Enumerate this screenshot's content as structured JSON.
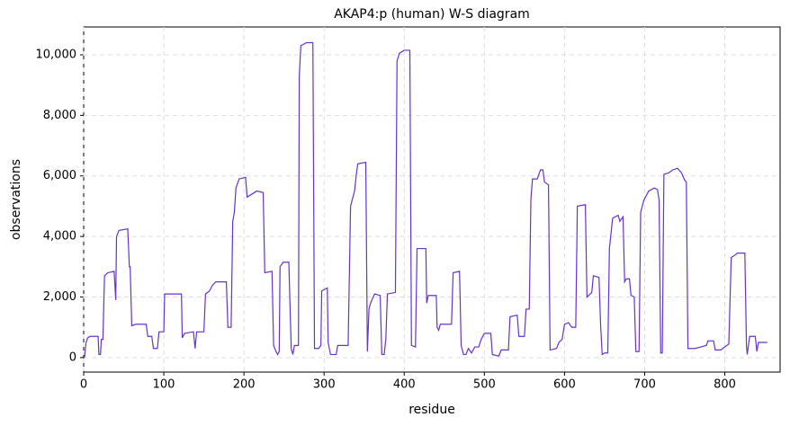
{
  "chart_data": {
    "type": "line",
    "title": "AKAP4:p (human) W-S diagram",
    "x_label": "residue",
    "y_label": "observations",
    "xlim": [
      0,
      869
    ],
    "ylim": [
      -480,
      10920
    ],
    "xticks": [
      0,
      100,
      200,
      300,
      400,
      500,
      600,
      700,
      800
    ],
    "yticks": [
      0,
      {
        "value": 2000,
        "label": "2,000"
      },
      {
        "value": 4000,
        "label": "4,000"
      },
      {
        "value": 6000,
        "label": "6,000"
      },
      {
        "value": 8000,
        "label": "8,000"
      },
      {
        "value": 10000,
        "label": "10,000"
      }
    ],
    "grid": true,
    "series": [
      {
        "color": "#6633cc",
        "x": [
          1,
          3,
          5,
          8,
          18,
          19,
          21,
          22,
          24,
          26,
          30,
          38,
          40,
          41,
          44,
          55,
          57,
          58,
          60,
          65,
          78,
          80,
          85,
          87,
          92,
          94,
          100,
          101,
          122,
          123,
          126,
          137,
          139,
          141,
          150,
          152,
          157,
          161,
          165,
          178,
          180,
          184,
          186,
          188,
          190,
          194,
          202,
          204,
          210,
          216,
          224,
          226,
          235,
          237,
          240,
          242,
          244,
          245,
          249,
          256,
          258,
          259,
          261,
          263,
          268,
          269,
          271,
          278,
          286,
          288,
          293,
          296,
          297,
          304,
          305,
          308,
          315,
          317,
          330,
          333,
          338,
          340,
          342,
          352,
          354,
          356,
          358,
          363,
          370,
          372,
          375,
          377,
          379,
          389,
          391,
          394,
          400,
          407,
          409,
          414,
          416,
          427,
          428,
          430,
          440,
          441,
          443,
          445,
          459,
          461,
          469,
          471,
          474,
          477,
          480,
          484,
          488,
          493,
          496,
          500,
          508,
          510,
          518,
          521,
          530,
          532,
          541,
          543,
          550,
          552,
          556,
          558,
          560,
          566,
          570,
          573,
          575,
          580,
          582,
          590,
          593,
          597,
          600,
          605,
          609,
          614,
          616,
          626,
          628,
          634,
          636,
          643,
          645,
          647,
          650,
          654,
          656,
          660,
          667,
          669,
          673,
          675,
          677,
          681,
          683,
          687,
          689,
          693,
          695,
          699,
          705,
          712,
          716,
          718,
          720,
          722,
          724,
          730,
          735,
          741,
          746,
          750,
          752,
          754,
          763,
          770,
          777,
          779,
          786,
          788,
          795,
          805,
          808,
          816,
          825,
          827,
          828,
          831,
          838,
          840,
          842,
          853
        ],
        "values": [
          0,
          500,
          650,
          700,
          700,
          100,
          100,
          600,
          600,
          2700,
          2800,
          2850,
          1900,
          4000,
          4200,
          4250,
          3000,
          3000,
          1050,
          1100,
          1100,
          700,
          700,
          300,
          300,
          850,
          850,
          2100,
          2100,
          650,
          800,
          850,
          300,
          850,
          850,
          2100,
          2200,
          2400,
          2500,
          2500,
          1000,
          1000,
          4500,
          4800,
          5600,
          5900,
          5950,
          5300,
          5400,
          5500,
          5450,
          2800,
          2850,
          400,
          200,
          100,
          200,
          3000,
          3150,
          3150,
          1200,
          300,
          100,
          400,
          400,
          9300,
          10300,
          10400,
          10400,
          300,
          300,
          400,
          2200,
          2300,
          500,
          100,
          100,
          400,
          400,
          5000,
          5500,
          6000,
          6400,
          6450,
          200,
          1600,
          1800,
          2100,
          2050,
          100,
          100,
          600,
          2100,
          2150,
          9800,
          10050,
          10150,
          10150,
          400,
          350,
          3600,
          3600,
          1800,
          2050,
          2050,
          1000,
          900,
          1100,
          1100,
          2800,
          2850,
          400,
          100,
          100,
          300,
          150,
          350,
          350,
          600,
          800,
          800,
          100,
          50,
          250,
          250,
          1350,
          1400,
          700,
          700,
          1600,
          1600,
          5200,
          5900,
          5900,
          6200,
          6200,
          5800,
          5700,
          250,
          300,
          500,
          600,
          1100,
          1150,
          1000,
          1000,
          5000,
          5050,
          2000,
          2150,
          2700,
          2650,
          1100,
          100,
          150,
          150,
          3600,
          4600,
          4700,
          4500,
          4650,
          2500,
          2600,
          2600,
          2050,
          2000,
          200,
          200,
          4800,
          5200,
          5500,
          5600,
          5550,
          5200,
          150,
          150,
          6050,
          6100,
          6200,
          6250,
          6100,
          5850,
          5800,
          300,
          300,
          350,
          400,
          550,
          550,
          250,
          250,
          450,
          3300,
          3450,
          3450,
          400,
          100,
          700,
          700,
          200,
          500,
          500
        ]
      }
    ]
  }
}
